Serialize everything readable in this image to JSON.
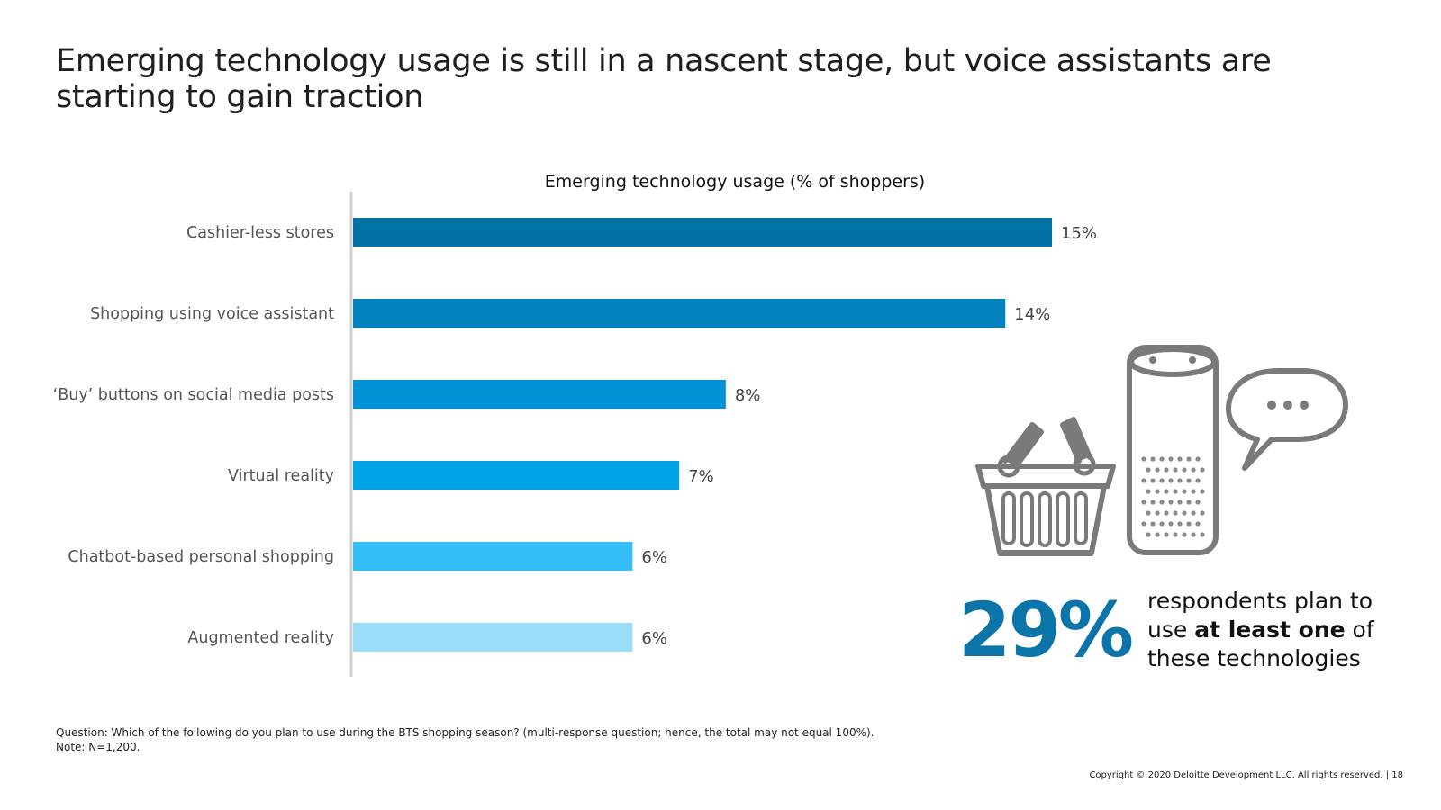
{
  "title": "Emerging technology usage is still in a nascent stage, but  voice assistants are starting to gain traction",
  "chart_data": {
    "type": "bar",
    "orientation": "horizontal",
    "title": "Emerging technology usage (% of shoppers)",
    "categories": [
      "Cashier-less stores",
      "Shopping using voice assistant",
      "‘Buy’ buttons on social media posts",
      "Virtual reality",
      "Chatbot-based personal shopping",
      "Augmented reality"
    ],
    "values": [
      15,
      14,
      8,
      7,
      6,
      6
    ],
    "value_labels": [
      "15%",
      "14%",
      "8%",
      "7%",
      "6%",
      "6%"
    ],
    "unit": "%",
    "xlim": [
      0,
      15
    ],
    "grid": false,
    "bar_colors": [
      "#0071a3",
      "#0082bf",
      "#0092d4",
      "#00a3e6",
      "#33bef7",
      "#99ddfb"
    ]
  },
  "callout": {
    "stat": "29%",
    "text_before": "respondents plan to use ",
    "text_bold": "at least one",
    "text_after": " of these technologies",
    "color": "#0b74a8"
  },
  "icons": [
    "shopping-basket-icon",
    "smart-speaker-icon",
    "speech-bubble-icon"
  ],
  "footnotes": {
    "question": "Question: Which of the following do you plan to use during the BTS shopping season? (multi-response question; hence, the total may not equal 100%).",
    "note": "Note: N=1,200."
  },
  "copyright": "Copyright © 2020 Deloitte Development LLC. All rights reserved.  |  18"
}
